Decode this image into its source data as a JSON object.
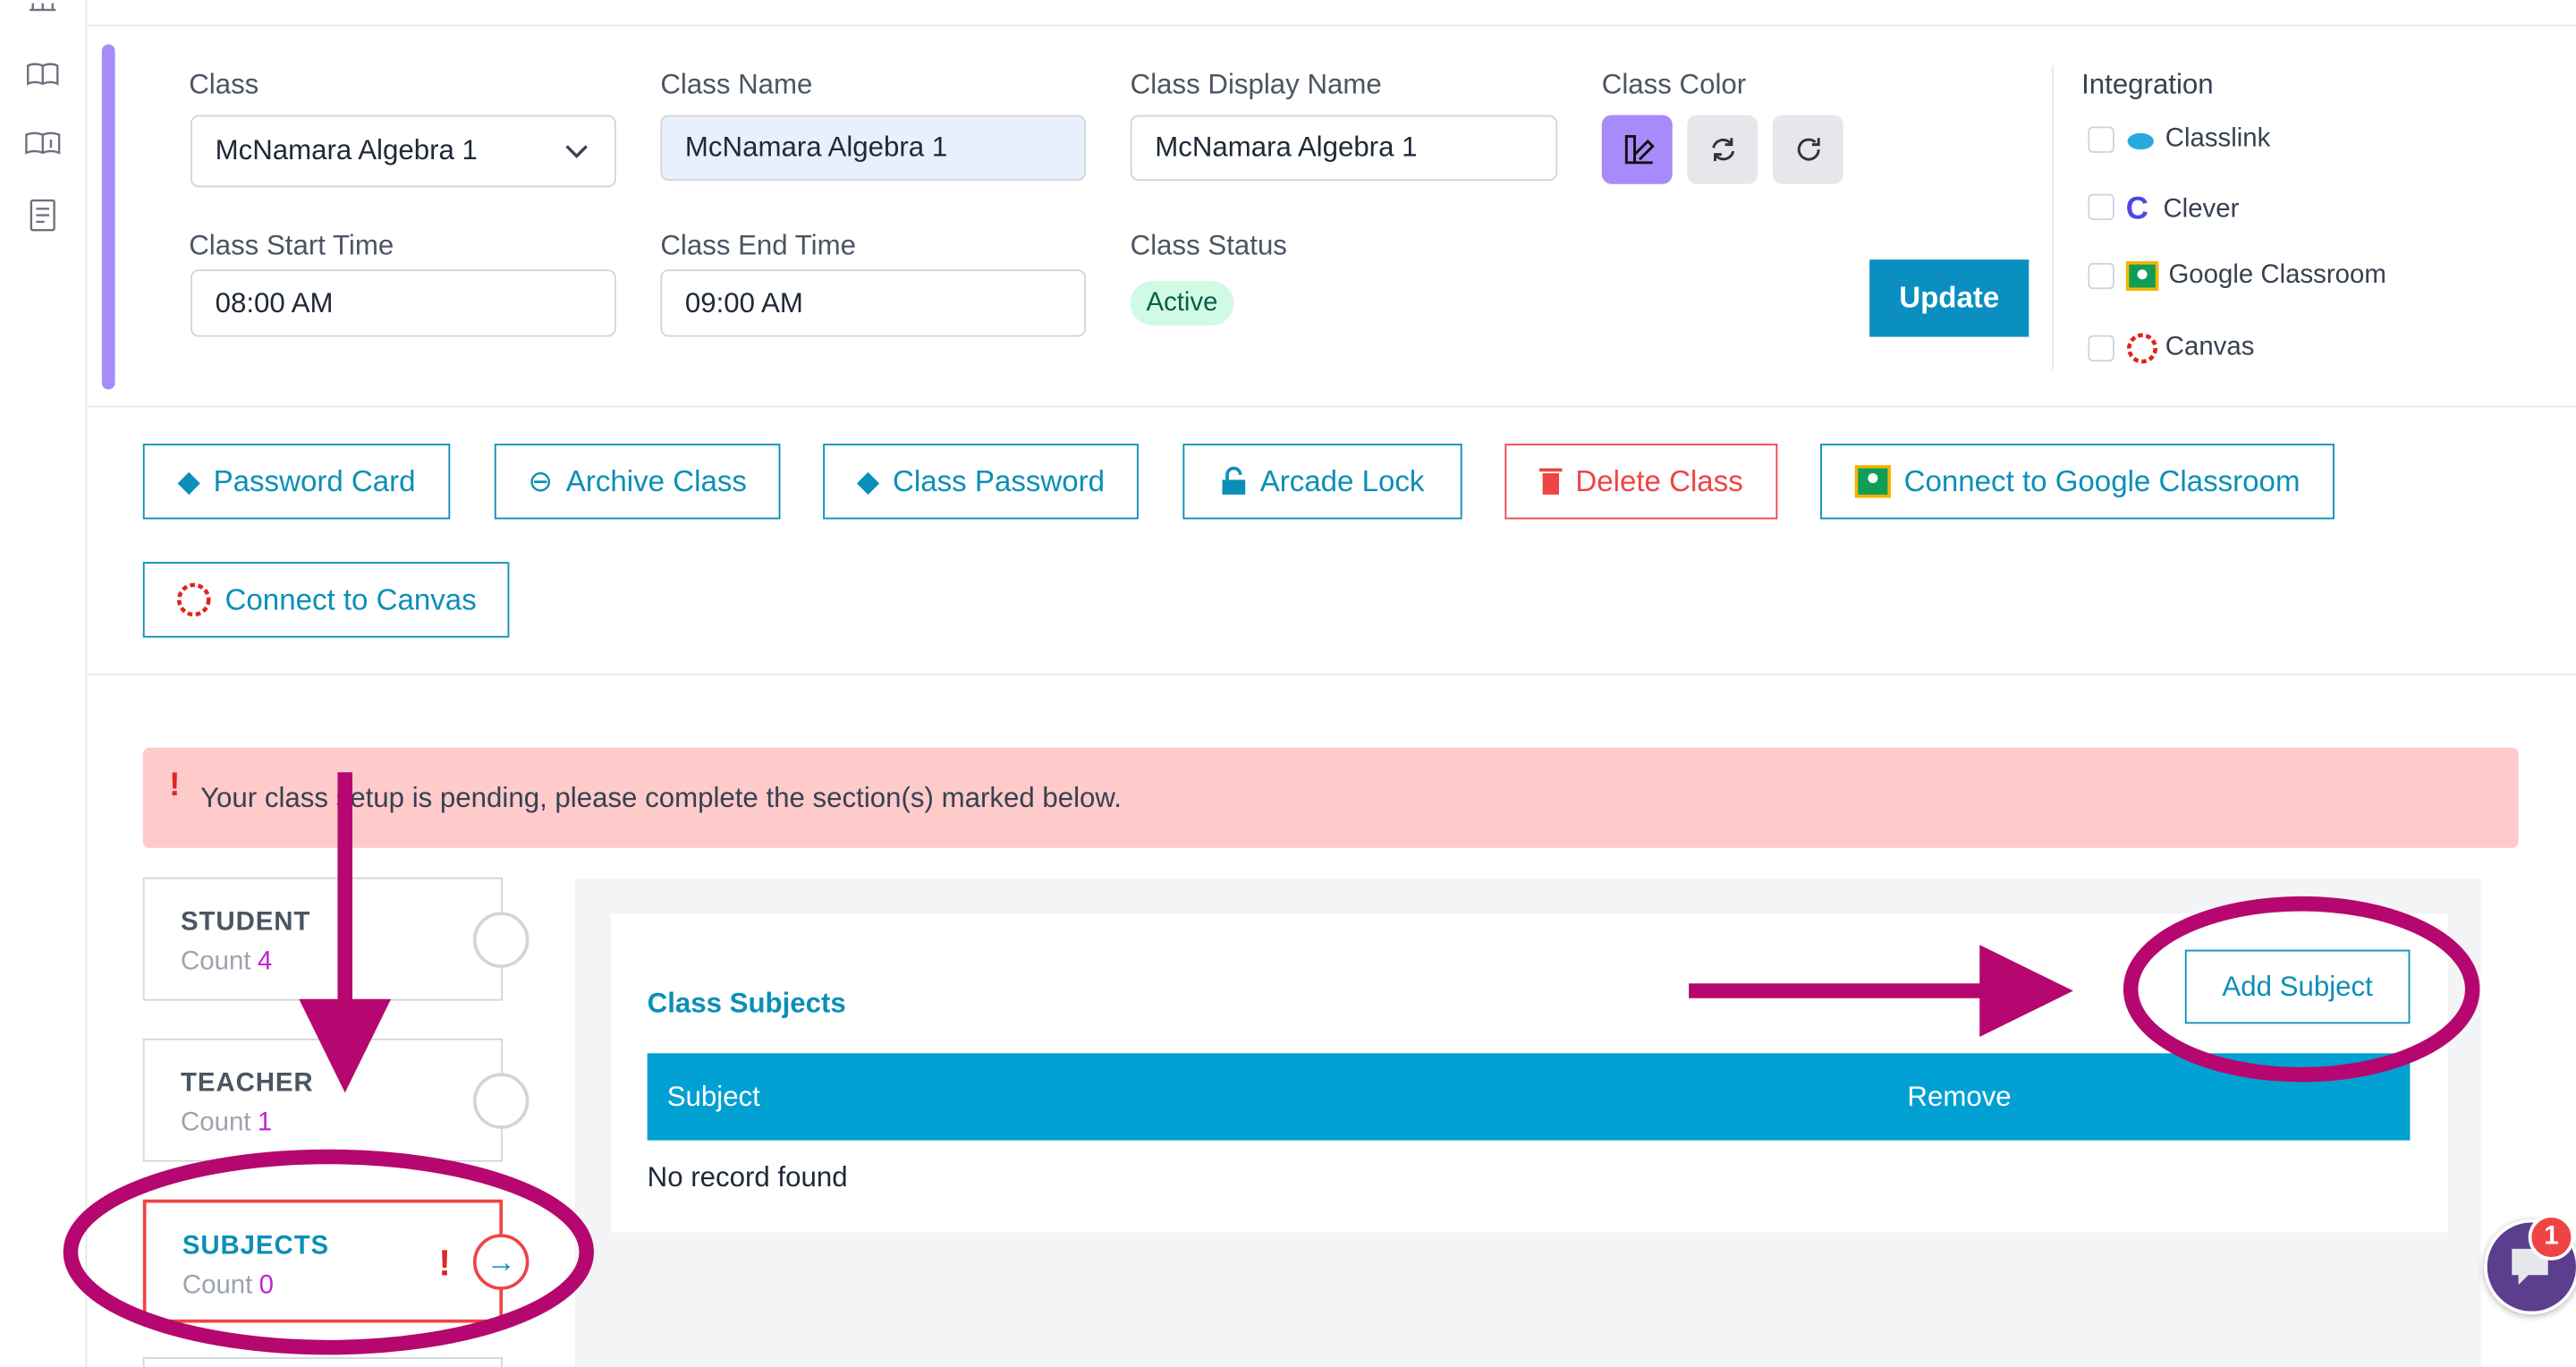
{
  "form": {
    "class_label": "Class",
    "class_value": "McNamara Algebra 1",
    "class_name_label": "Class Name",
    "class_name_value": "McNamara Algebra 1",
    "display_name_label": "Class Display Name",
    "display_name_value": "McNamara Algebra 1",
    "color_label": "Class Color",
    "start_label": "Class Start Time",
    "start_value": "08:00 AM",
    "end_label": "Class End Time",
    "end_value": "09:00 AM",
    "status_label": "Class Status",
    "status_value": "Active",
    "update": "Update"
  },
  "integration": {
    "title": "Integration",
    "options": [
      "Classlink",
      "Clever",
      "Google Classroom",
      "Canvas"
    ]
  },
  "actions": [
    "Password Card",
    "Archive Class",
    "Class Password",
    "Arcade Lock",
    "Delete Class",
    "Connect to Google Classroom",
    "Connect to Canvas"
  ],
  "alert": "Your class setup is pending, please complete the section(s) marked below.",
  "sections": [
    {
      "name": "STUDENT",
      "count_label": "Count",
      "count": 4
    },
    {
      "name": "TEACHER",
      "count_label": "Count",
      "count": 1
    },
    {
      "name": "SUBJECTS",
      "count_label": "Count",
      "count": 0
    }
  ],
  "subjects": {
    "title": "Class Subjects",
    "add": "Add Subject",
    "columns": [
      "Subject",
      "Remove"
    ],
    "empty": "No record found"
  },
  "chat_badge": 1
}
